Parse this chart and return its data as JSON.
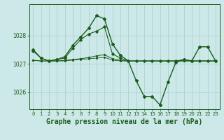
{
  "title": "Graphe pression niveau de la mer (hPa)",
  "xlabel_hours": [
    0,
    1,
    2,
    3,
    4,
    5,
    6,
    7,
    8,
    9,
    10,
    11,
    12,
    13,
    14,
    15,
    16,
    17,
    18,
    19,
    20,
    21,
    22,
    23
  ],
  "ylim": [
    1025.4,
    1029.1
  ],
  "yticks": [
    1026,
    1027,
    1028
  ],
  "background_color": "#cce8e8",
  "grid_color": "#aacccc",
  "line_color": "#1a5c1a",
  "series": {
    "main": [
      1027.5,
      1027.2,
      1027.1,
      1027.15,
      1027.25,
      1027.65,
      1027.95,
      1028.25,
      1028.7,
      1028.58,
      1027.7,
      1027.3,
      1027.1,
      1026.4,
      1025.85,
      1025.85,
      1025.55,
      1026.35,
      1027.05,
      1027.15,
      1027.1,
      1027.6,
      1027.6,
      1027.1
    ],
    "line2": [
      1027.45,
      1027.2,
      1027.1,
      1027.15,
      1027.2,
      1027.55,
      1027.85,
      1028.05,
      1028.15,
      1028.3,
      1027.35,
      1027.2,
      1027.1,
      1027.1,
      1027.1,
      1027.1,
      1027.1,
      1027.1,
      1027.1,
      1027.15,
      1027.1,
      1027.1,
      1027.1,
      1027.1
    ],
    "line3": [
      1027.12,
      1027.1,
      1027.1,
      1027.1,
      1027.12,
      1027.15,
      1027.18,
      1027.22,
      1027.28,
      1027.32,
      1027.18,
      1027.12,
      1027.1,
      1027.1,
      1027.1,
      1027.1,
      1027.1,
      1027.1,
      1027.1,
      1027.1,
      1027.1,
      1027.1,
      1027.1,
      1027.1
    ],
    "line4": [
      1027.13,
      1027.1,
      1027.1,
      1027.1,
      1027.1,
      1027.13,
      1027.15,
      1027.18,
      1027.2,
      1027.23,
      1027.13,
      1027.1,
      1027.1,
      1027.1,
      1027.1,
      1027.1,
      1027.1,
      1027.1,
      1027.1,
      1027.1,
      1027.1,
      1027.1,
      1027.1,
      1027.1
    ]
  },
  "title_fontsize": 7,
  "tick_fontsize": 5.5,
  "figsize": [
    3.2,
    2.0
  ],
  "dpi": 100
}
